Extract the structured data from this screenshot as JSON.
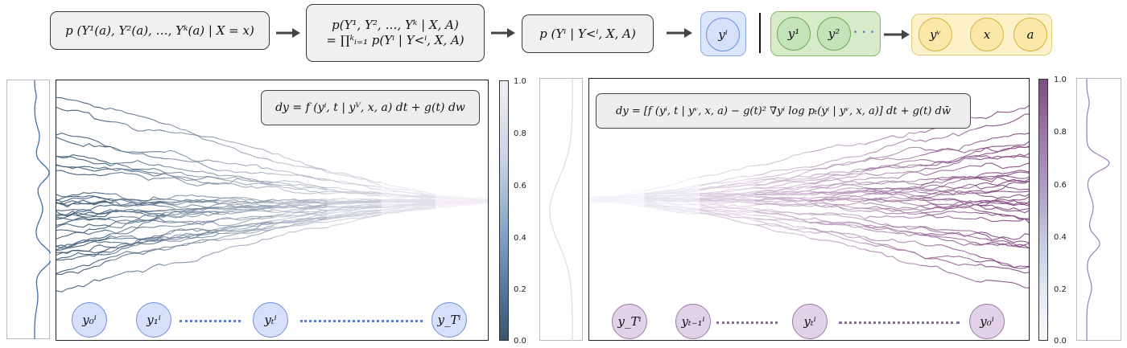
{
  "pipeline": {
    "box1": "p (Y¹(a), Y²(a), …, Yᵏ(a) | X = x)",
    "box2_line1": "p(Y¹, Y², …, Yᵏ | X, A)",
    "box2_line2": "= ∏ᵏᵢ₌₁ p(Yⁱ | Y<ⁱ, X, A)",
    "box3": "p (Yⁱ | Y<ⁱ, X, A)",
    "target_node": "yⁱ",
    "cond_nodes": [
      "y¹",
      "y²"
    ],
    "cond_ellipsis": "· · ·",
    "out_nodes": [
      "yᵛ",
      "x",
      "a"
    ]
  },
  "left_panel": {
    "equation": "dy = f (yⁱ, t | yⱽ, x, a) dt + g(t) dw",
    "nodes": [
      "y₀ⁱ",
      "y₁ⁱ",
      "yₜⁱ",
      "y_Tⁱ"
    ],
    "colorbar_ticks": [
      "1.0",
      "0.8",
      "0.6",
      "0.4",
      "0.2",
      "0.0"
    ]
  },
  "right_panel": {
    "equation": "dy = [f (yⁱ, t | yᵛ, x, a) − g(t)² ∇yⁱ log pₜ(yⁱ | yᵛ, x, a)] dt + g(t) dw̄",
    "nodes": [
      "y_Tⁱ",
      "yₜ₋₁ⁱ",
      "yₜⁱ",
      "y₀ⁱ"
    ],
    "colorbar_ticks": [
      "1.0",
      "0.8",
      "0.6",
      "0.4",
      "0.2",
      "0.0"
    ]
  },
  "colors": {
    "forward_dark": "#34506e",
    "forward_light": "#f2eef5",
    "reverse_dark": "#7a3d78",
    "reverse_light": "#f2f4fa",
    "blue_node": "#d6e0fb",
    "purple_node": "#e2d2e8",
    "green_node": "#c5e3b8",
    "yellow_node": "#fbe8a8"
  }
}
